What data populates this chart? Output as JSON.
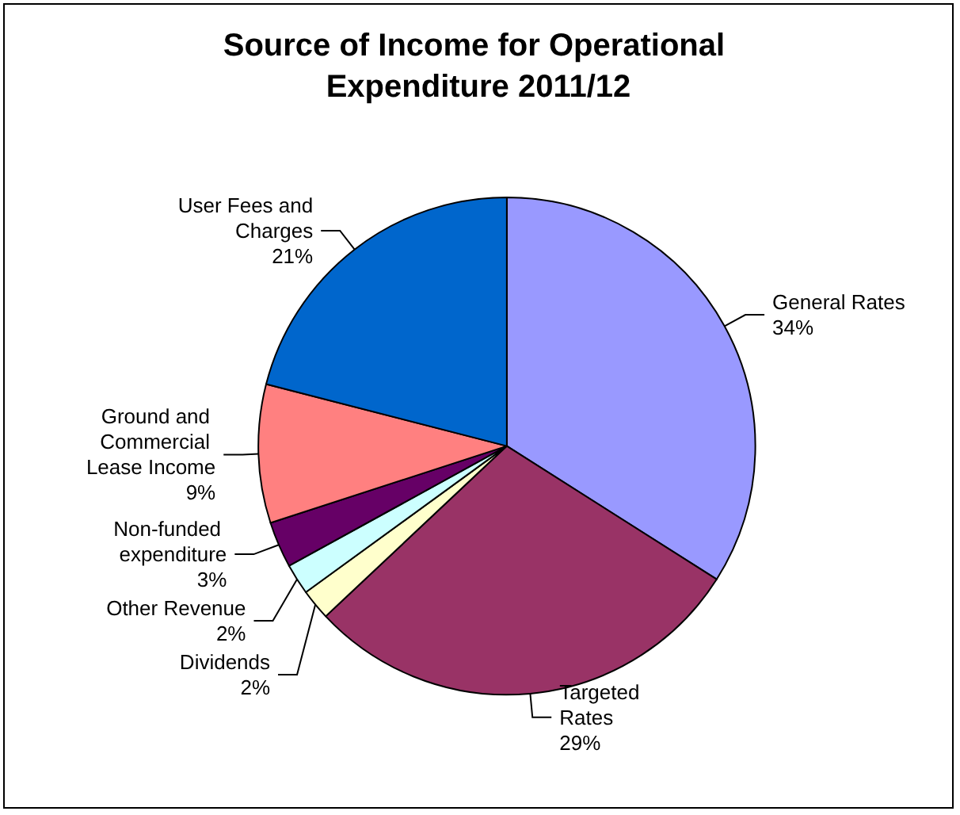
{
  "chart_data": {
    "type": "pie",
    "title": "Source of Income for Operational Expenditure 2011/12",
    "categories": [
      "General Rates",
      "Targeted Rates",
      "Dividends",
      "Other Revenue",
      "Non-funded expenditure",
      "Ground and Commercial Lease Income",
      "User Fees and Charges"
    ],
    "values": [
      34,
      29,
      2,
      2,
      3,
      9,
      21
    ],
    "value_labels": [
      "34%",
      "29%",
      "2%",
      "2%",
      "3%",
      "9%",
      "21%"
    ],
    "colors": [
      "#9999ff",
      "#993366",
      "#ffffcc",
      "#ccffff",
      "#660066",
      "#ff8080",
      "#0066cc"
    ],
    "legend": false
  }
}
